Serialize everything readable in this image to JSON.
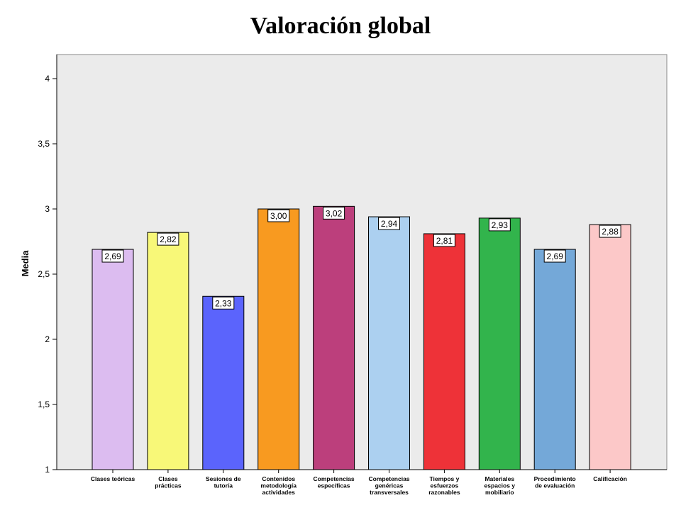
{
  "chart_data": {
    "type": "bar",
    "title": "Valoración global",
    "ylabel": "Media",
    "xlabel": "",
    "ylim": [
      1,
      4.2
    ],
    "yticks": [
      "1",
      "1,5",
      "2",
      "2,5",
      "3",
      "3,5",
      "4"
    ],
    "ytick_values": [
      1,
      1.5,
      2,
      2.5,
      3,
      3.5,
      4
    ],
    "grid": false,
    "plot_background": "#ebebeb",
    "categories": [
      [
        "Clases teóricas"
      ],
      [
        "Clases",
        "prácticas"
      ],
      [
        "Sesiones de",
        "tutoría"
      ],
      [
        "Contenidos",
        "metodología",
        "actividades"
      ],
      [
        "Competencias",
        "específicas"
      ],
      [
        "Competencias",
        "genéricas",
        "transversales"
      ],
      [
        "Tiempos y",
        "esfuerzos",
        "razonables"
      ],
      [
        "Materiales",
        "espacios y",
        "mobiliario"
      ],
      [
        "Procedimiento",
        "de evaluación"
      ],
      [
        "Calificación"
      ]
    ],
    "values": [
      2.69,
      2.82,
      2.33,
      3.0,
      3.02,
      2.94,
      2.81,
      2.93,
      2.69,
      2.88
    ],
    "value_labels": [
      "2,69",
      "2,82",
      "2,33",
      "3,00",
      "3,02",
      "2,94",
      "2,81",
      "2,93",
      "2,69",
      "2,88"
    ],
    "colors": [
      "#dcbcf0",
      "#f8f878",
      "#5b64fc",
      "#f89a20",
      "#bc3f7c",
      "#acd0f0",
      "#ee3238",
      "#32b44c",
      "#74a8d8",
      "#fcc8c8"
    ]
  }
}
